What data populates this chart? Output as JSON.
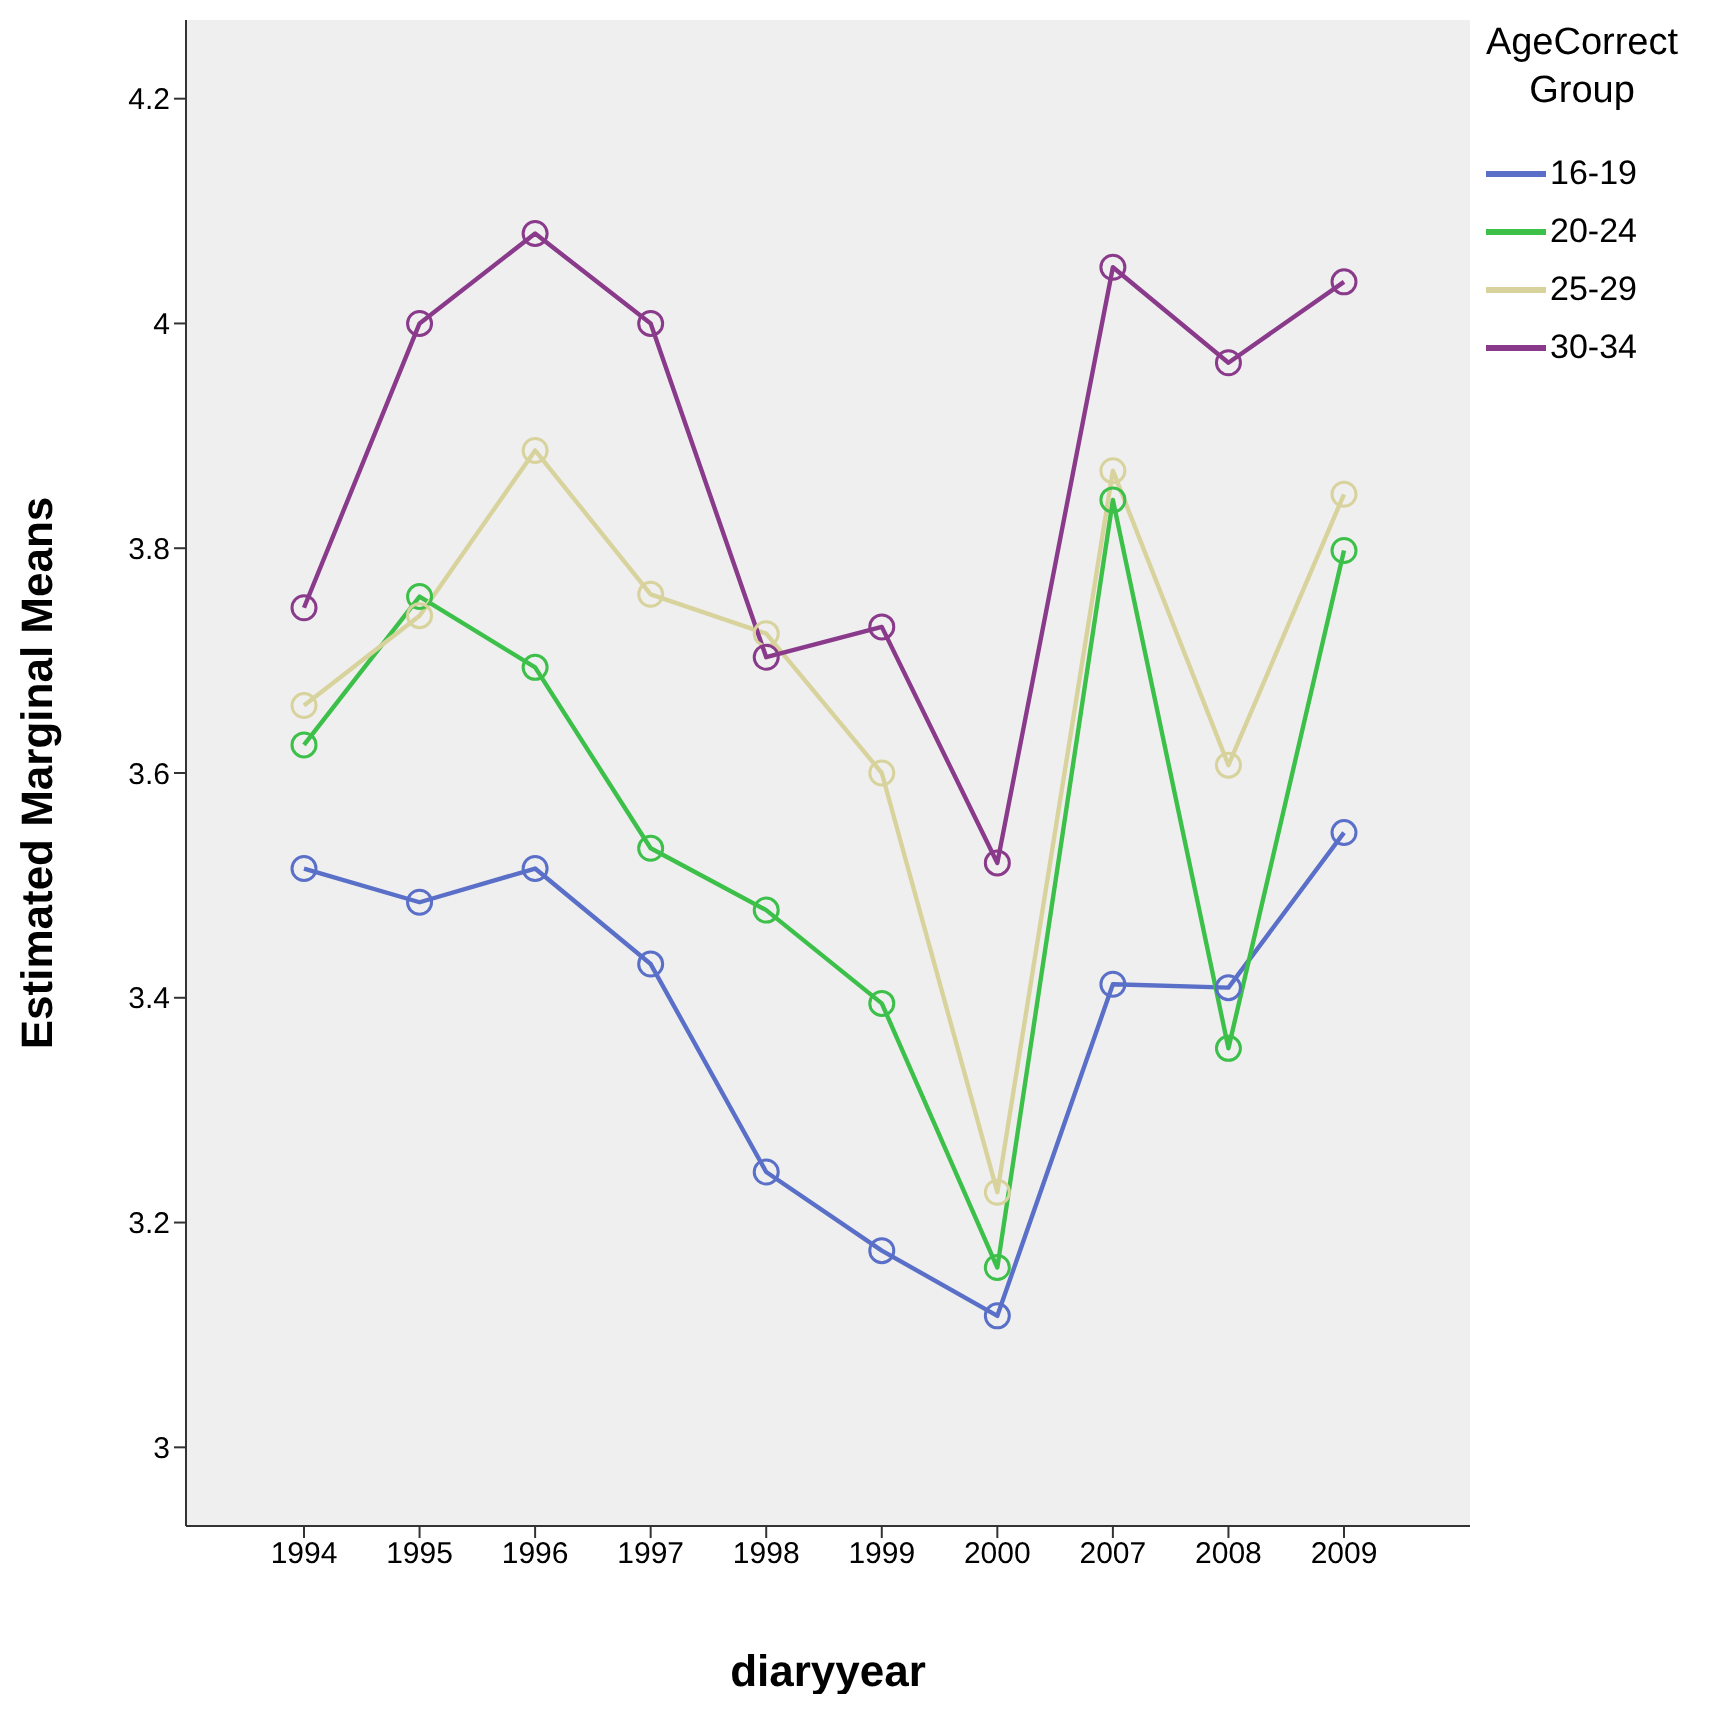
{
  "chart_data": {
    "type": "line",
    "xlabel": "diaryyear",
    "ylabel": "Estimated Marginal Means",
    "legend_title": "AgeCorrect Group",
    "categories": [
      "1994",
      "1995",
      "1996",
      "1997",
      "1998",
      "1999",
      "2000",
      "2007",
      "2008",
      "2009"
    ],
    "series": [
      {
        "name": "16-19",
        "color": "#5a6fc8",
        "values": [
          3.515,
          3.485,
          3.515,
          3.43,
          3.245,
          3.175,
          3.117,
          3.412,
          3.409,
          3.547
        ]
      },
      {
        "name": "20-24",
        "color": "#3cc04a",
        "values": [
          3.625,
          3.757,
          3.694,
          3.533,
          3.478,
          3.395,
          3.16,
          3.843,
          3.355,
          3.798
        ]
      },
      {
        "name": "25-29",
        "color": "#d8d39c",
        "values": [
          3.66,
          3.74,
          3.887,
          3.759,
          3.724,
          3.6,
          3.227,
          3.869,
          3.607,
          3.848
        ]
      },
      {
        "name": "30-34",
        "color": "#8a3a8a",
        "values": [
          3.747,
          4.0,
          4.08,
          4.0,
          3.703,
          3.73,
          3.52,
          4.05,
          3.965,
          4.037
        ]
      }
    ],
    "ylim": [
      2.93,
      4.27
    ],
    "yticks": [
      3,
      3.2,
      3.4,
      3.6,
      3.8,
      4,
      4.2
    ],
    "grid": false,
    "legend": "top right",
    "marker": "circle",
    "line_style": "solid"
  }
}
